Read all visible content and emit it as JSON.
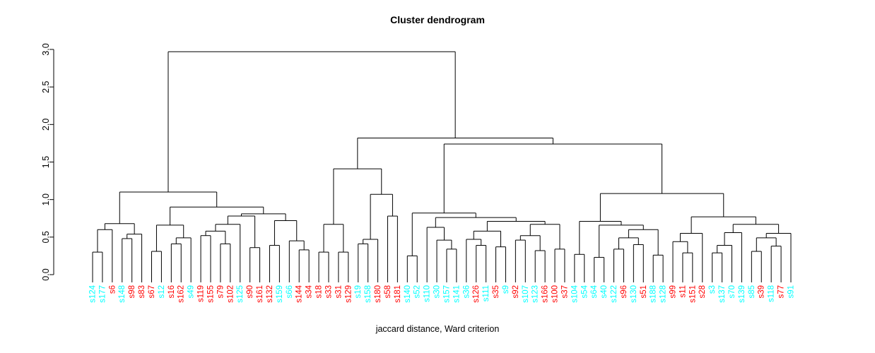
{
  "chart_data": {
    "type": "dendrogram",
    "title": "Cluster dendrogram",
    "subtitle": "jaccard distance, Ward criterion",
    "ylim": [
      0,
      3
    ],
    "ytick_labels": [
      "0.0",
      "0.5",
      "1.0",
      "1.5",
      "2.0",
      "2.5",
      "3.0"
    ],
    "yticks": [
      0,
      0.5,
      1,
      1.5,
      2,
      2.5,
      3
    ],
    "grid": false,
    "line_color": "#000000",
    "label_colors": {
      "cyan": "#00FFFF",
      "red": "#FF0000"
    },
    "leaf_hang": -0.103,
    "leaves": [
      {
        "label": "s124",
        "color": "cyan"
      },
      {
        "label": "s177",
        "color": "cyan"
      },
      {
        "label": "s6",
        "color": "red"
      },
      {
        "label": "s148",
        "color": "cyan"
      },
      {
        "label": "s98",
        "color": "red"
      },
      {
        "label": "s83",
        "color": "red"
      },
      {
        "label": "s67",
        "color": "red"
      },
      {
        "label": "s12",
        "color": "cyan"
      },
      {
        "label": "s16",
        "color": "red"
      },
      {
        "label": "s162",
        "color": "red"
      },
      {
        "label": "s49",
        "color": "cyan"
      },
      {
        "label": "s119",
        "color": "red"
      },
      {
        "label": "s155",
        "color": "red"
      },
      {
        "label": "s79",
        "color": "red"
      },
      {
        "label": "s102",
        "color": "red"
      },
      {
        "label": "s125",
        "color": "cyan"
      },
      {
        "label": "s90",
        "color": "red"
      },
      {
        "label": "s161",
        "color": "red"
      },
      {
        "label": "s132",
        "color": "red"
      },
      {
        "label": "s159",
        "color": "cyan"
      },
      {
        "label": "s66",
        "color": "cyan"
      },
      {
        "label": "s144",
        "color": "red"
      },
      {
        "label": "s34",
        "color": "red"
      },
      {
        "label": "s18",
        "color": "red"
      },
      {
        "label": "s33",
        "color": "red"
      },
      {
        "label": "s31",
        "color": "red"
      },
      {
        "label": "s129",
        "color": "red"
      },
      {
        "label": "s19",
        "color": "cyan"
      },
      {
        "label": "s158",
        "color": "cyan"
      },
      {
        "label": "s180",
        "color": "red"
      },
      {
        "label": "s58",
        "color": "red"
      },
      {
        "label": "s181",
        "color": "red"
      },
      {
        "label": "s140",
        "color": "cyan"
      },
      {
        "label": "s52",
        "color": "cyan"
      },
      {
        "label": "s110",
        "color": "cyan"
      },
      {
        "label": "s30",
        "color": "cyan"
      },
      {
        "label": "s157",
        "color": "cyan"
      },
      {
        "label": "s141",
        "color": "cyan"
      },
      {
        "label": "s36",
        "color": "cyan"
      },
      {
        "label": "s126",
        "color": "red"
      },
      {
        "label": "s111",
        "color": "cyan"
      },
      {
        "label": "s35",
        "color": "red"
      },
      {
        "label": "s9",
        "color": "cyan"
      },
      {
        "label": "s92",
        "color": "red"
      },
      {
        "label": "s107",
        "color": "cyan"
      },
      {
        "label": "s123",
        "color": "cyan"
      },
      {
        "label": "s166",
        "color": "red"
      },
      {
        "label": "s100",
        "color": "red"
      },
      {
        "label": "s37",
        "color": "red"
      },
      {
        "label": "s104",
        "color": "cyan"
      },
      {
        "label": "s54",
        "color": "cyan"
      },
      {
        "label": "s64",
        "color": "cyan"
      },
      {
        "label": "s40",
        "color": "cyan"
      },
      {
        "label": "s122",
        "color": "cyan"
      },
      {
        "label": "s96",
        "color": "red"
      },
      {
        "label": "s130",
        "color": "cyan"
      },
      {
        "label": "s51",
        "color": "red"
      },
      {
        "label": "s188",
        "color": "cyan"
      },
      {
        "label": "s128",
        "color": "cyan"
      },
      {
        "label": "s99",
        "color": "red"
      },
      {
        "label": "s11",
        "color": "red"
      },
      {
        "label": "s151",
        "color": "red"
      },
      {
        "label": "s28",
        "color": "red"
      },
      {
        "label": "s3",
        "color": "cyan"
      },
      {
        "label": "s137",
        "color": "cyan"
      },
      {
        "label": "s70",
        "color": "cyan"
      },
      {
        "label": "s139",
        "color": "cyan"
      },
      {
        "label": "s85",
        "color": "cyan"
      },
      {
        "label": "s39",
        "color": "red"
      },
      {
        "label": "s118",
        "color": "cyan"
      },
      {
        "label": "s77",
        "color": "red"
      },
      {
        "label": "s91",
        "color": "cyan"
      }
    ],
    "tree": {
      "h": 2.97,
      "c": [
        {
          "h": 1.1,
          "c": [
            {
              "h": 0.68,
              "c": [
                {
                  "h": 0.6,
                  "c": [
                    {
                      "h": 0.3,
                      "c": [
                        "s124",
                        "s177"
                      ]
                    },
                    "s6"
                  ]
                },
                {
                  "h": 0.54,
                  "c": [
                    {
                      "h": 0.48,
                      "c": [
                        "s148",
                        "s98"
                      ]
                    },
                    "s83"
                  ]
                }
              ]
            },
            {
              "h": 0.9,
              "c": [
                {
                  "h": 0.66,
                  "c": [
                    {
                      "h": 0.31,
                      "c": [
                        "s67",
                        "s12"
                      ]
                    },
                    {
                      "h": 0.49,
                      "c": [
                        {
                          "h": 0.41,
                          "c": [
                            "s16",
                            "s162"
                          ]
                        },
                        "s49"
                      ]
                    }
                  ]
                },
                {
                  "h": 0.81,
                  "c": [
                    {
                      "h": 0.78,
                      "c": [
                        {
                          "h": 0.67,
                          "c": [
                            {
                              "h": 0.58,
                              "c": [
                                {
                                  "h": 0.52,
                                  "c": [
                                    "s119",
                                    "s155"
                                  ]
                                },
                                {
                                  "h": 0.41,
                                  "c": [
                                    "s79",
                                    "s102"
                                  ]
                                }
                              ]
                            },
                            "s125"
                          ]
                        },
                        {
                          "h": 0.36,
                          "c": [
                            "s90",
                            "s161"
                          ]
                        }
                      ]
                    },
                    {
                      "h": 0.72,
                      "c": [
                        {
                          "h": 0.39,
                          "c": [
                            "s132",
                            "s159"
                          ]
                        },
                        {
                          "h": 0.45,
                          "c": [
                            "s66",
                            {
                              "h": 0.33,
                              "c": [
                                "s144",
                                "s34"
                              ]
                            }
                          ]
                        }
                      ]
                    }
                  ]
                }
              ]
            }
          ]
        },
        {
          "h": 1.82,
          "c": [
            {
              "h": 1.41,
              "c": [
                {
                  "h": 0.67,
                  "c": [
                    {
                      "h": 0.3,
                      "c": [
                        "s18",
                        "s33"
                      ]
                    },
                    {
                      "h": 0.3,
                      "c": [
                        "s31",
                        "s129"
                      ]
                    }
                  ]
                },
                {
                  "h": 1.07,
                  "c": [
                    {
                      "h": 0.47,
                      "c": [
                        {
                          "h": 0.41,
                          "c": [
                            "s19",
                            "s158"
                          ]
                        },
                        "s180"
                      ]
                    },
                    {
                      "h": 0.78,
                      "c": [
                        "s58",
                        "s181"
                      ]
                    }
                  ]
                }
              ]
            },
            {
              "h": 1.74,
              "c": [
                {
                  "h": 0.82,
                  "c": [
                    {
                      "h": 0.25,
                      "c": [
                        "s140",
                        "s52"
                      ]
                    },
                    {
                      "h": 0.76,
                      "c": [
                        {
                          "h": 0.63,
                          "c": [
                            "s110",
                            {
                              "h": 0.46,
                              "c": [
                                "s30",
                                {
                                  "h": 0.34,
                                  "c": [
                                    "s157",
                                    "s141"
                                  ]
                                }
                              ]
                            }
                          ]
                        },
                        {
                          "h": 0.71,
                          "c": [
                            {
                              "h": 0.58,
                              "c": [
                                {
                                  "h": 0.47,
                                  "c": [
                                    "s36",
                                    {
                                      "h": 0.39,
                                      "c": [
                                        "s126",
                                        "s111"
                                      ]
                                    }
                                  ]
                                },
                                {
                                  "h": 0.37,
                                  "c": [
                                    "s35",
                                    "s9"
                                  ]
                                }
                              ]
                            },
                            {
                              "h": 0.67,
                              "c": [
                                {
                                  "h": 0.52,
                                  "c": [
                                    {
                                      "h": 0.46,
                                      "c": [
                                        "s92",
                                        "s107"
                                      ]
                                    },
                                    {
                                      "h": 0.32,
                                      "c": [
                                        "s123",
                                        "s166"
                                      ]
                                    }
                                  ]
                                },
                                {
                                  "h": 0.34,
                                  "c": [
                                    "s100",
                                    "s37"
                                  ]
                                }
                              ]
                            }
                          ]
                        }
                      ]
                    }
                  ]
                },
                {
                  "h": 1.08,
                  "c": [
                    {
                      "h": 0.71,
                      "c": [
                        {
                          "h": 0.27,
                          "c": [
                            "s104",
                            "s54"
                          ]
                        },
                        {
                          "h": 0.66,
                          "c": [
                            {
                              "h": 0.23,
                              "c": [
                                "s64",
                                "s40"
                              ]
                            },
                            {
                              "h": 0.6,
                              "c": [
                                {
                                  "h": 0.49,
                                  "c": [
                                    {
                                      "h": 0.34,
                                      "c": [
                                        "s122",
                                        "s96"
                                      ]
                                    },
                                    {
                                      "h": 0.4,
                                      "c": [
                                        "s130",
                                        "s51"
                                      ]
                                    }
                                  ]
                                },
                                {
                                  "h": 0.26,
                                  "c": [
                                    "s188",
                                    "s128"
                                  ]
                                }
                              ]
                            }
                          ]
                        }
                      ]
                    },
                    {
                      "h": 0.77,
                      "c": [
                        {
                          "h": 0.55,
                          "c": [
                            {
                              "h": 0.44,
                              "c": [
                                "s99",
                                {
                                  "h": 0.29,
                                  "c": [
                                    "s11",
                                    "s151"
                                  ]
                                }
                              ]
                            },
                            "s28"
                          ]
                        },
                        {
                          "h": 0.67,
                          "c": [
                            {
                              "h": 0.56,
                              "c": [
                                {
                                  "h": 0.39,
                                  "c": [
                                    {
                                      "h": 0.29,
                                      "c": [
                                        "s3",
                                        "s137"
                                      ]
                                    },
                                    "s70"
                                  ]
                                },
                                "s139"
                              ]
                            },
                            {
                              "h": 0.55,
                              "c": [
                                {
                                  "h": 0.49,
                                  "c": [
                                    {
                                      "h": 0.31,
                                      "c": [
                                        "s85",
                                        "s39"
                                      ]
                                    },
                                    {
                                      "h": 0.38,
                                      "c": [
                                        "s118",
                                        "s77"
                                      ]
                                    }
                                  ]
                                },
                                "s91"
                              ]
                            }
                          ]
                        }
                      ]
                    }
                  ]
                }
              ]
            }
          ]
        }
      ]
    }
  }
}
